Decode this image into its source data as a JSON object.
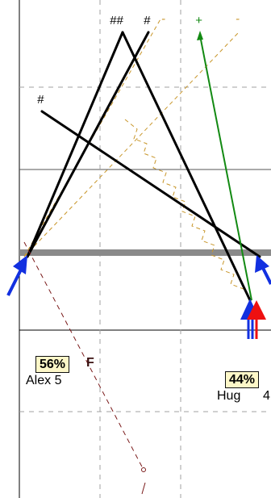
{
  "left_player": {
    "percent": "56%",
    "name": "Alex 5",
    "flag": "F"
  },
  "right_player": {
    "percent": "44%",
    "name": "Hug",
    "extra": "4"
  },
  "markers": {
    "double_hash": "##",
    "hash_top": "#",
    "hash_left": "#",
    "plus": "+",
    "dash1": "-",
    "dash2": "-"
  },
  "colors": {
    "black_line": "#000000",
    "gold_dash": "#c8962a",
    "green": "#138a13",
    "maroon": "#7a1a1a",
    "blue_arrow": "#1230e0",
    "red_arrow": "#ee1010",
    "grey_bar": "#8a8a8a",
    "label_bg": "#fdf7c8"
  }
}
